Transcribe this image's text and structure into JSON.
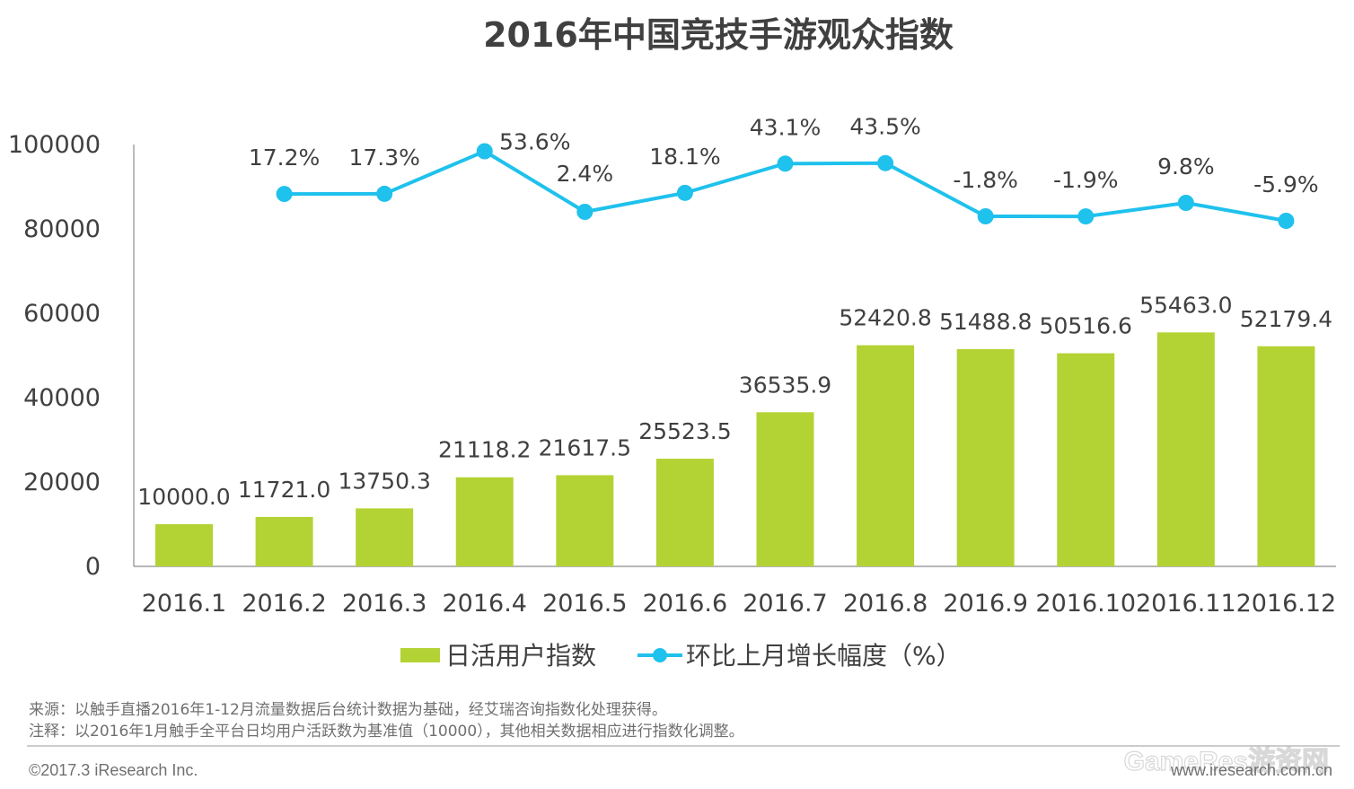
{
  "title": "2016年中国竞技手游观众指数",
  "chart_data": {
    "type": "bar",
    "categories": [
      "2016.1",
      "2016.2",
      "2016.3",
      "2016.4",
      "2016.5",
      "2016.6",
      "2016.7",
      "2016.8",
      "2016.9",
      "2016.10",
      "2016.11",
      "2016.12"
    ],
    "series": [
      {
        "name": "日活用户指数",
        "type": "bar",
        "values": [
          10000.0,
          11721.0,
          13750.3,
          21118.2,
          21617.5,
          25523.5,
          36535.9,
          52420.8,
          51488.8,
          50516.6,
          55463.0,
          52179.4
        ],
        "labels": [
          "10000.0",
          "11721.0",
          "13750.3",
          "21118.2",
          "21617.5",
          "25523.5",
          "36535.9",
          "52420.8",
          "51488.8",
          "50516.6",
          "55463.0",
          "52179.4"
        ],
        "color": "#b3d334"
      },
      {
        "name": "环比上月增长幅度（%）",
        "type": "line",
        "values": [
          null,
          17.2,
          17.3,
          53.6,
          2.4,
          18.1,
          43.1,
          43.5,
          -1.8,
          -1.9,
          9.8,
          -5.9
        ],
        "labels": [
          "",
          "17.2%",
          "17.3%",
          "53.6%",
          "2.4%",
          "18.1%",
          "43.1%",
          "43.5%",
          "-1.8%",
          "-1.9%",
          "9.8%",
          "-5.9%"
        ],
        "color": "#1fc1ed"
      }
    ],
    "y_ticks": [
      "0",
      "20000",
      "40000",
      "60000",
      "80000",
      "100000"
    ],
    "ylim": [
      0,
      100000
    ],
    "legend_position": "bottom-center",
    "grid": false
  },
  "notes": {
    "source": "来源：以触手直播2016年1-12月流量数据后台统计数据为基础，经艾瑞咨询指数化处理获得。",
    "note": "注释：以2016年1月触手全平台日均用户活跃数为基准值（10000），其他相关数据相应进行指数化调整。"
  },
  "footer": {
    "copyright": "©2017.3 iResearch Inc.",
    "website": "www.iresearch.com.cn",
    "watermark": "GameRes游资网"
  }
}
